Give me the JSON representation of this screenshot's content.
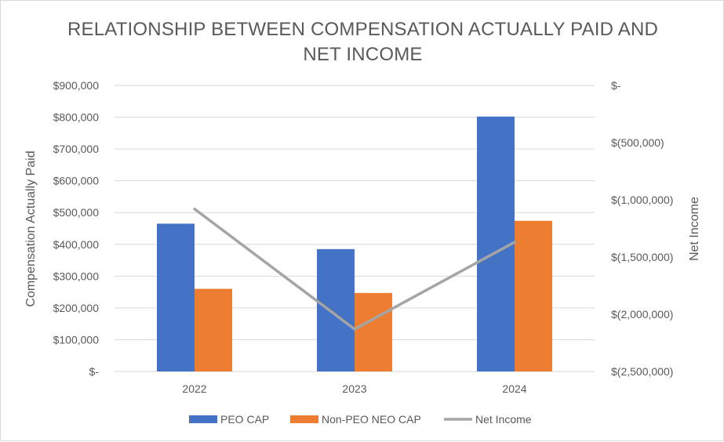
{
  "chart_data": {
    "type": "bar",
    "title_line1": "RELATIONSHIP BETWEEN COMPENSATION ACTUALLY PAID AND",
    "title_line2": "NET INCOME",
    "categories": [
      "2022",
      "2023",
      "2024"
    ],
    "ylabel": "Compensation Actually Paid",
    "y2label": "Net Income",
    "ylim": [
      0,
      900000
    ],
    "y2lim": [
      -2500000,
      0
    ],
    "y_ticks": [
      {
        "value": 900000,
        "label": "$900,000"
      },
      {
        "value": 800000,
        "label": "$800,000"
      },
      {
        "value": 700000,
        "label": "$700,000"
      },
      {
        "value": 600000,
        "label": "$600,000"
      },
      {
        "value": 500000,
        "label": "$500,000"
      },
      {
        "value": 400000,
        "label": "$400,000"
      },
      {
        "value": 300000,
        "label": "$300,000"
      },
      {
        "value": 200000,
        "label": "$200,000"
      },
      {
        "value": 100000,
        "label": "$100,000"
      },
      {
        "value": 0,
        "label": "$-"
      }
    ],
    "y2_ticks": [
      {
        "value": 0,
        "label": "$-"
      },
      {
        "value": -500000,
        "label": "$(500,000)"
      },
      {
        "value": -1000000,
        "label": "$(1,000,000)"
      },
      {
        "value": -1500000,
        "label": "$(1,500,000)"
      },
      {
        "value": -2000000,
        "label": "$(2,000,000)"
      },
      {
        "value": -2500000,
        "label": "$(2,500,000)"
      }
    ],
    "series": [
      {
        "name": "PEO CAP",
        "kind": "bar",
        "axis": "left",
        "color": "#4472c4",
        "values": [
          465000,
          385000,
          802000
        ]
      },
      {
        "name": "Non-PEO NEO CAP",
        "kind": "bar",
        "axis": "left",
        "color": "#ed7d31",
        "values": [
          260000,
          247000,
          474000
        ]
      },
      {
        "name": "Net Income",
        "kind": "line",
        "axis": "right",
        "color": "#a5a5a5",
        "values": [
          -1080000,
          -2130000,
          -1370000
        ]
      }
    ],
    "grid": true,
    "legend_position": "bottom"
  }
}
